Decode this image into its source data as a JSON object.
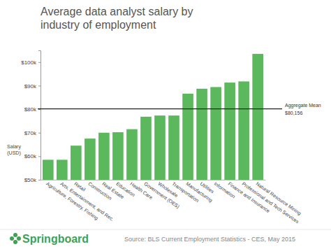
{
  "chart_data": {
    "type": "bar",
    "title": "Average data analyst salary by industry of employment",
    "y_label": [
      "Salary",
      "(USD)"
    ],
    "categories": [
      "Agriculture, Forestry, Fishing",
      "Arts, Entertainment, and Rec.",
      "Retail",
      "Construction",
      "Real Estate",
      "Education",
      "Health Care",
      "Government (OES)",
      "Wholesale",
      "Transportation",
      "Manufacturing",
      "Utilities",
      "Information",
      "Finance and Insurance",
      "Professional and Tech Services",
      "Natural Resource Mining"
    ],
    "values": [
      58500,
      58500,
      64500,
      67500,
      70000,
      70200,
      71500,
      76800,
      77300,
      77300,
      86600,
      88700,
      89400,
      91300,
      91800,
      103500
    ],
    "color": "#5cb85c",
    "ylim": [
      50000,
      105000
    ],
    "yticks": [
      {
        "value": 50000,
        "label": "$50k"
      },
      {
        "value": 60000,
        "label": "$60k"
      },
      {
        "value": 70000,
        "label": "$70k"
      },
      {
        "value": 80000,
        "label": "$80k"
      },
      {
        "value": 90000,
        "label": "$90k"
      },
      {
        "value": 100000,
        "label": "$100k"
      }
    ],
    "grid": false,
    "mean": {
      "text": "Aggregate Mean",
      "value": 80156,
      "label": "$80,156"
    },
    "source": "Source: BLS Current Employment Statistics - CES, May 2015",
    "brand": "Springboard"
  }
}
